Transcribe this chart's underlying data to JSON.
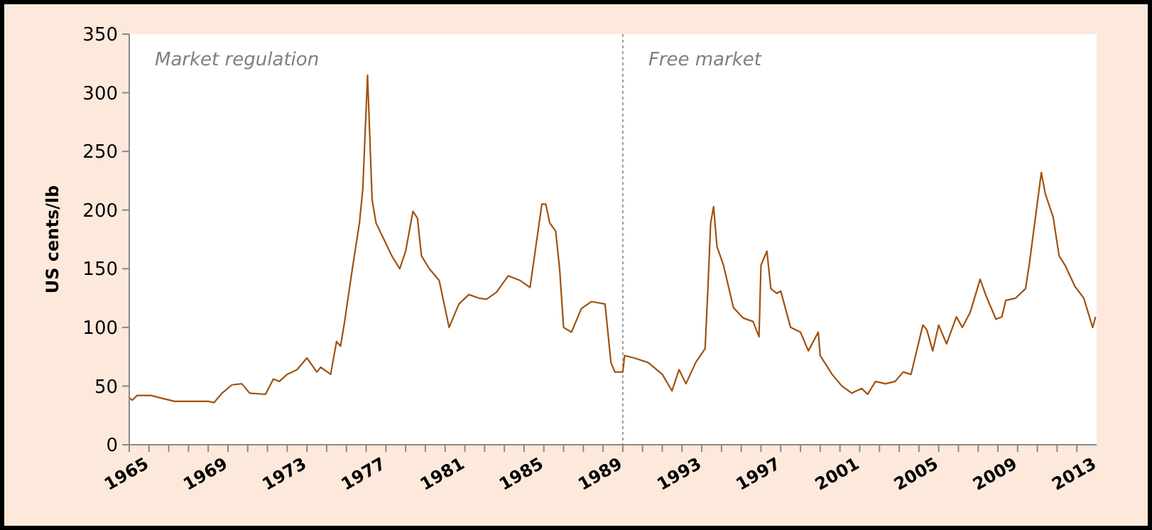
{
  "chart_data": {
    "type": "line",
    "ylabel": "US cents/lb",
    "xlim": [
      1965,
      2014
    ],
    "ylim": [
      0,
      350
    ],
    "xticks": [
      1965,
      {
        "value": 1966,
        "label": null
      },
      {
        "value": 1967,
        "label": null
      },
      {
        "value": 1968,
        "label": null
      },
      1969,
      {
        "value": 1970,
        "label": null
      },
      {
        "value": 1971,
        "label": null
      },
      {
        "value": 1972,
        "label": null
      },
      1973,
      {
        "value": 1974,
        "label": null
      },
      {
        "value": 1975,
        "label": null
      },
      {
        "value": 1976,
        "label": null
      },
      1977,
      {
        "value": 1978,
        "label": null
      },
      {
        "value": 1979,
        "label": null
      },
      {
        "value": 1980,
        "label": null
      },
      1981,
      {
        "value": 1982,
        "label": null
      },
      {
        "value": 1983,
        "label": null
      },
      {
        "value": 1984,
        "label": null
      },
      1985,
      {
        "value": 1986,
        "label": null
      },
      {
        "value": 1987,
        "label": null
      },
      {
        "value": 1988,
        "label": null
      },
      1989,
      {
        "value": 1990,
        "label": null
      },
      {
        "value": 1991,
        "label": null
      },
      {
        "value": 1992,
        "label": null
      },
      1993,
      {
        "value": 1994,
        "label": null
      },
      {
        "value": 1995,
        "label": null
      },
      {
        "value": 1996,
        "label": null
      },
      1997,
      {
        "value": 1998,
        "label": null
      },
      {
        "value": 1999,
        "label": null
      },
      {
        "value": 2000,
        "label": null
      },
      2001,
      {
        "value": 2002,
        "label": null
      },
      {
        "value": 2003,
        "label": null
      },
      {
        "value": 2004,
        "label": null
      },
      2005,
      {
        "value": 2006,
        "label": null
      },
      {
        "value": 2007,
        "label": null
      },
      {
        "value": 2008,
        "label": null
      },
      2009,
      {
        "value": 2010,
        "label": null
      },
      {
        "value": 2011,
        "label": null
      },
      {
        "value": 2012,
        "label": null
      },
      2013
    ],
    "yticks": [
      0,
      50,
      100,
      150,
      200,
      250,
      300,
      350
    ],
    "grid": false,
    "marker": "none",
    "line_style": "solid",
    "ref_lines": [
      {
        "axis": "x",
        "value": 1990,
        "color": "#999999",
        "line_style": "dotted"
      }
    ],
    "annotations": [
      "Market regulation",
      "Free market"
    ],
    "series": [
      {
        "color": "#a0520f",
        "x": [
          1965.0,
          1965.15,
          1965.4,
          1966.1,
          1966.8,
          1967.3,
          1969.0,
          1969.3,
          1969.7,
          1970.2,
          1970.7,
          1971.1,
          1971.9,
          1972.3,
          1972.6,
          1973.0,
          1973.5,
          1974.0,
          1974.5,
          1974.7,
          1975.2,
          1975.5,
          1975.7,
          1975.9,
          1976.3,
          1976.66,
          1976.83,
          1977.07,
          1977.3,
          1977.5,
          1977.9,
          1978.3,
          1978.7,
          1979.0,
          1979.37,
          1979.6,
          1979.8,
          1980.2,
          1980.7,
          1981.2,
          1981.7,
          1982.2,
          1982.7,
          1983.1,
          1983.6,
          1984.2,
          1984.8,
          1985.3,
          1985.9,
          1986.1,
          1986.3,
          1986.6,
          1986.8,
          1987.0,
          1987.4,
          1987.9,
          1988.4,
          1989.1,
          1989.4,
          1989.6,
          1990.0,
          1990.09,
          1990.57,
          1991.29,
          1992.0,
          1992.49,
          1992.85,
          1993.2,
          1993.69,
          1994.17,
          1994.3,
          1994.45,
          1994.6,
          1994.77,
          1995.1,
          1995.6,
          1996.1,
          1996.6,
          1996.9,
          1997.0,
          1997.3,
          1997.5,
          1997.8,
          1998.0,
          1998.5,
          1999.0,
          1999.4,
          1999.9,
          2000.0,
          2000.6,
          2001.1,
          2001.6,
          2002.1,
          2002.4,
          2002.8,
          2003.3,
          2003.8,
          2004.2,
          2004.6,
          2004.8,
          2005.2,
          2005.4,
          2005.7,
          2006.0,
          2006.4,
          2006.9,
          2007.2,
          2007.6,
          2008.1,
          2008.4,
          2008.9,
          2009.2,
          2009.4,
          2009.9,
          2010.4,
          2010.6,
          2011.2,
          2011.4,
          2011.8,
          2012.1,
          2012.4,
          2012.9,
          2013.35,
          2013.8,
          2013.95
        ],
        "values": [
          40,
          38,
          42,
          42,
          39,
          37,
          37,
          36,
          44,
          51,
          52,
          44,
          43,
          56,
          54,
          60,
          64,
          74,
          62,
          66,
          60,
          88,
          84,
          104,
          150,
          189,
          218,
          315,
          209,
          189,
          175,
          161,
          150,
          165,
          199,
          193,
          161,
          150,
          140,
          100,
          120,
          128,
          125,
          124,
          130,
          144,
          140,
          134,
          205,
          205,
          189,
          182,
          150,
          100,
          96,
          116,
          122,
          120,
          70,
          62,
          62,
          76,
          74,
          70,
          60,
          46,
          64,
          52,
          70,
          82,
          129,
          189,
          203,
          169,
          153,
          117,
          108,
          105,
          92,
          153,
          165,
          133,
          129,
          131,
          100,
          96,
          80,
          96,
          76,
          60,
          50,
          44,
          48,
          43,
          54,
          52,
          54,
          62,
          60,
          74,
          102,
          98,
          80,
          102,
          86,
          109,
          100,
          113,
          141,
          127,
          107,
          109,
          123,
          125,
          133,
          155,
          232,
          214,
          194,
          161,
          153,
          135,
          125,
          100,
          109
        ]
      }
    ]
  }
}
